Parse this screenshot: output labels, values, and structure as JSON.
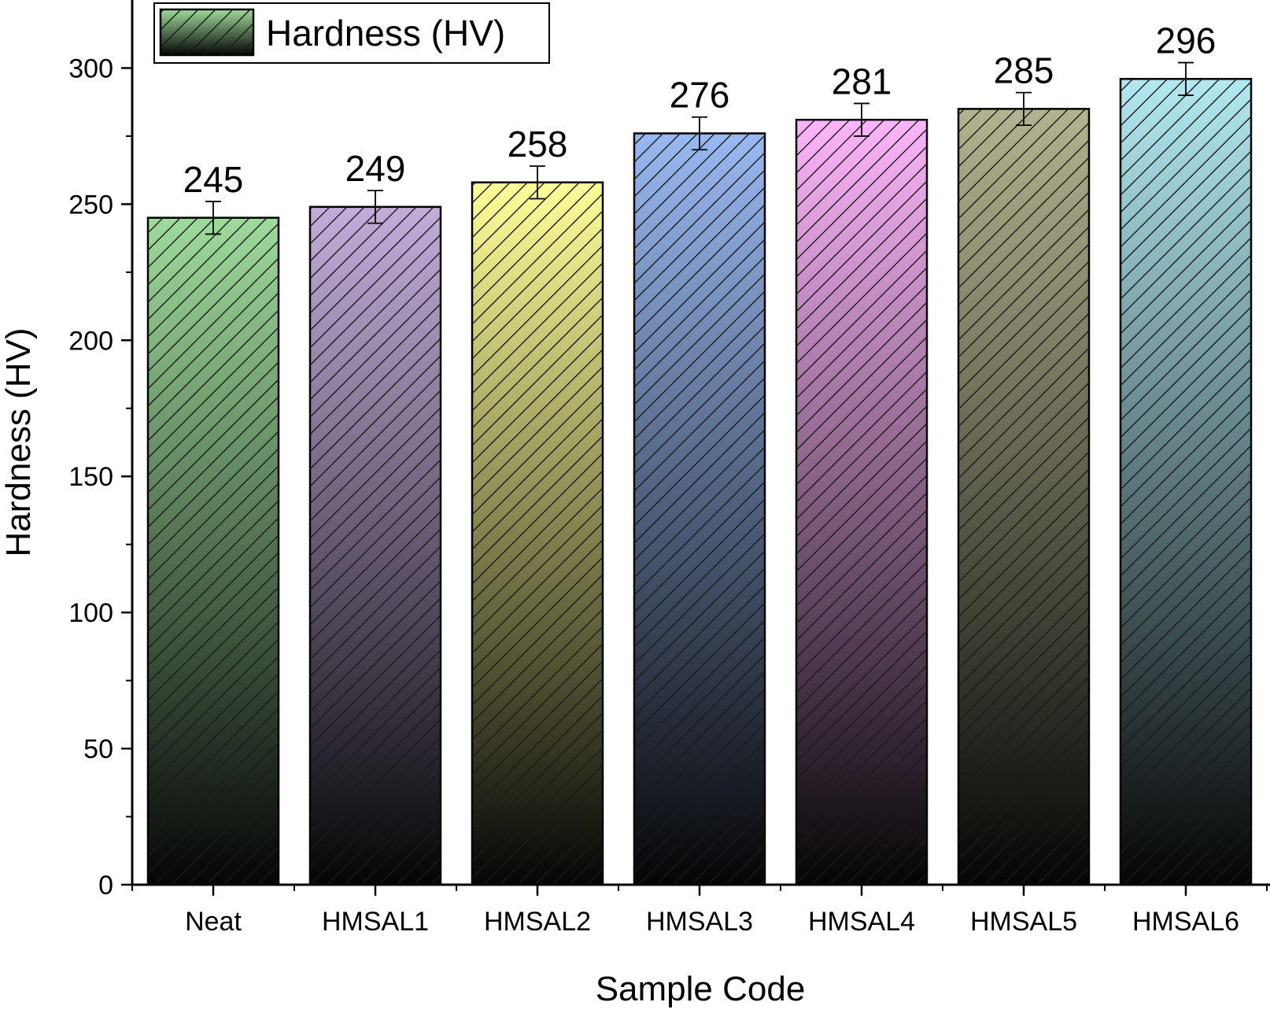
{
  "chart_data": {
    "type": "bar",
    "categories": [
      "Neat",
      "HMSAL1",
      "HMSAL2",
      "HMSAL3",
      "HMSAL4",
      "HMSAL5",
      "HMSAL6"
    ],
    "series": [
      {
        "name": "Hardness (HV)",
        "values": [
          245,
          249,
          258,
          276,
          281,
          285,
          296
        ],
        "errors": [
          6,
          6,
          6,
          6,
          6,
          6,
          6
        ]
      }
    ],
    "data_labels": [
      "245",
      "249",
      "258",
      "276",
      "281",
      "285",
      "296"
    ],
    "xlabel": "Sample Code",
    "ylabel": "Hardness (HV)",
    "ylim": [
      0,
      325
    ],
    "yticks": [
      0,
      50,
      100,
      150,
      200,
      250,
      300
    ],
    "ytick_labels": [
      "0",
      "50",
      "100",
      "150",
      "200",
      "250",
      "300"
    ],
    "grid": false,
    "legend_position": "top-left",
    "fill_pattern": "diagonal-hatch",
    "bar_colors": [
      "#9edb9b",
      "#c3addb",
      "#ffff99",
      "#99b9f2",
      "#fdb5fb",
      "#b3b38f",
      "#b2e9f2"
    ]
  }
}
